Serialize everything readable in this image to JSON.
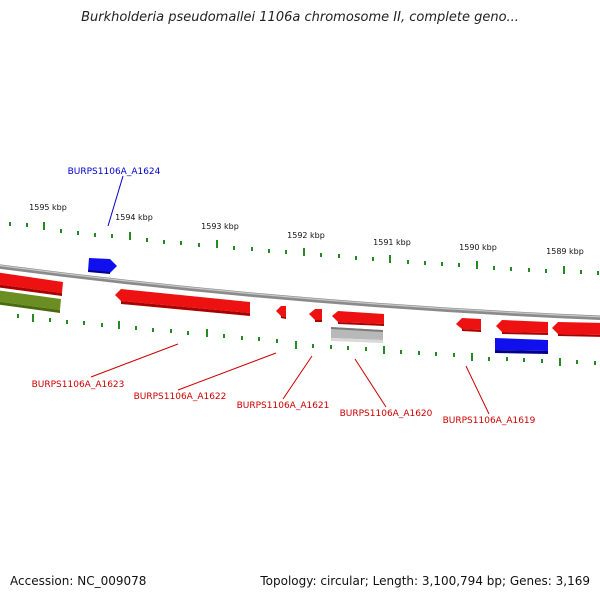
{
  "header": {
    "title": "Burkholderia pseudomallei 1106a chromosome II, complete geno..."
  },
  "footer": {
    "accession": "Accession: NC_009078",
    "summary": "Topology: circular; Length: 3,100,794 bp; Genes: 3,169"
  },
  "map": {
    "tick_labels": [
      "1595 kbp",
      "1594 kbp",
      "1593 kbp",
      "1592 kbp",
      "1591 kbp",
      "1590 kbp",
      "1589 kbp"
    ],
    "genes": [
      {
        "label": "BURPS1106A_A1624",
        "color": "#0000cc"
      },
      {
        "label": "BURPS1106A_A1623",
        "color": "#cc0000"
      },
      {
        "label": "BURPS1106A_A1622",
        "color": "#cc0000"
      },
      {
        "label": "BURPS1106A_A1621",
        "color": "#cc0000"
      },
      {
        "label": "BURPS1106A_A1620",
        "color": "#cc0000"
      },
      {
        "label": "BURPS1106A_A1619",
        "color": "#cc0000"
      }
    ],
    "colors": {
      "forward_gene": "#0000ee",
      "reverse_gene": "#ee0000",
      "rna_gene": "#6b8e23",
      "pseudo_gene": "#b0b0b0",
      "tick": "#228b22",
      "backbone": "#808080"
    }
  }
}
